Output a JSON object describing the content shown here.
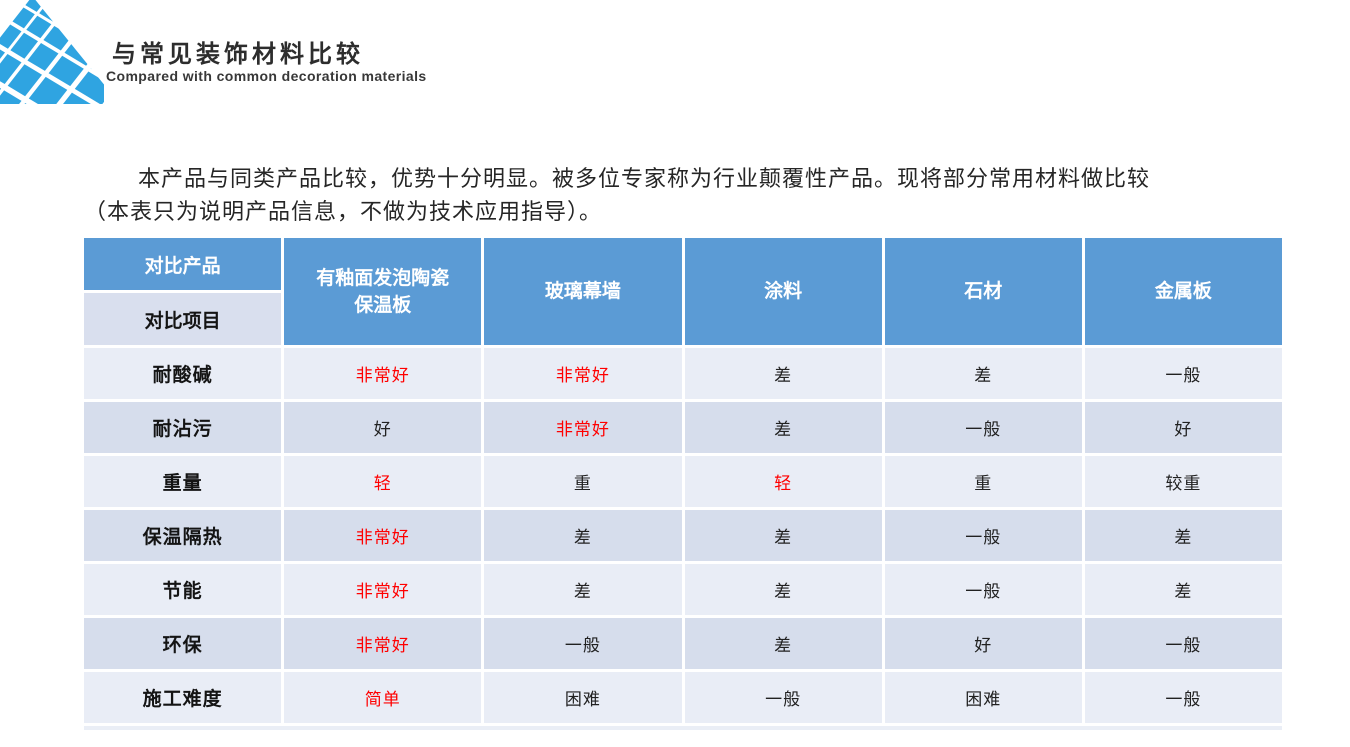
{
  "header": {
    "title": "与常见装饰材料比较",
    "subtitle": "Compared with common decoration materials",
    "logo_color": "#2fa4e1"
  },
  "intro": {
    "line1": "本产品与同类产品比较，优势十分明显。被多位专家称为行业颠覆性产品。现将部分常用材料做比较",
    "line2": "（本表只为说明产品信息，不做为技术应用指导）。"
  },
  "table": {
    "corner": {
      "top": "对比产品",
      "bottom": "对比项目"
    },
    "columns": [
      "有釉面发泡陶瓷保温板",
      "玻璃幕墙",
      "涂料",
      "石材",
      "金属板"
    ],
    "rows": [
      {
        "label": "耐酸碱",
        "values": [
          {
            "text": "非常好",
            "highlight": true
          },
          {
            "text": "非常好",
            "highlight": true
          },
          {
            "text": "差",
            "highlight": false
          },
          {
            "text": "差",
            "highlight": false
          },
          {
            "text": "一般",
            "highlight": false
          }
        ]
      },
      {
        "label": "耐沾污",
        "values": [
          {
            "text": "好",
            "highlight": false
          },
          {
            "text": "非常好",
            "highlight": true
          },
          {
            "text": "差",
            "highlight": false
          },
          {
            "text": "一般",
            "highlight": false
          },
          {
            "text": "好",
            "highlight": false
          }
        ]
      },
      {
        "label": "重量",
        "values": [
          {
            "text": "轻",
            "highlight": true
          },
          {
            "text": "重",
            "highlight": false
          },
          {
            "text": "轻",
            "highlight": true
          },
          {
            "text": "重",
            "highlight": false
          },
          {
            "text": "较重",
            "highlight": false
          }
        ]
      },
      {
        "label": "保温隔热",
        "values": [
          {
            "text": "非常好",
            "highlight": true
          },
          {
            "text": "差",
            "highlight": false
          },
          {
            "text": "差",
            "highlight": false
          },
          {
            "text": "一般",
            "highlight": false
          },
          {
            "text": "差",
            "highlight": false
          }
        ]
      },
      {
        "label": "节能",
        "values": [
          {
            "text": "非常好",
            "highlight": true
          },
          {
            "text": "差",
            "highlight": false
          },
          {
            "text": "差",
            "highlight": false
          },
          {
            "text": "一般",
            "highlight": false
          },
          {
            "text": "差",
            "highlight": false
          }
        ]
      },
      {
        "label": "环保",
        "values": [
          {
            "text": "非常好",
            "highlight": true
          },
          {
            "text": "一般",
            "highlight": false
          },
          {
            "text": "差",
            "highlight": false
          },
          {
            "text": "好",
            "highlight": false
          },
          {
            "text": "一般",
            "highlight": false
          }
        ]
      },
      {
        "label": "施工难度",
        "values": [
          {
            "text": "简单",
            "highlight": true
          },
          {
            "text": "困难",
            "highlight": false
          },
          {
            "text": "一般",
            "highlight": false
          },
          {
            "text": "困难",
            "highlight": false
          },
          {
            "text": "一般",
            "highlight": false
          }
        ]
      }
    ],
    "colors": {
      "header_bg": "#5b9bd5",
      "header_text": "#ffffff",
      "corner_sub_bg": "#d9dfee",
      "row_odd_bg": "#e9edf6",
      "row_even_bg": "#d6ddec",
      "highlight_text": "#ff0000",
      "body_text": "#212121"
    }
  }
}
